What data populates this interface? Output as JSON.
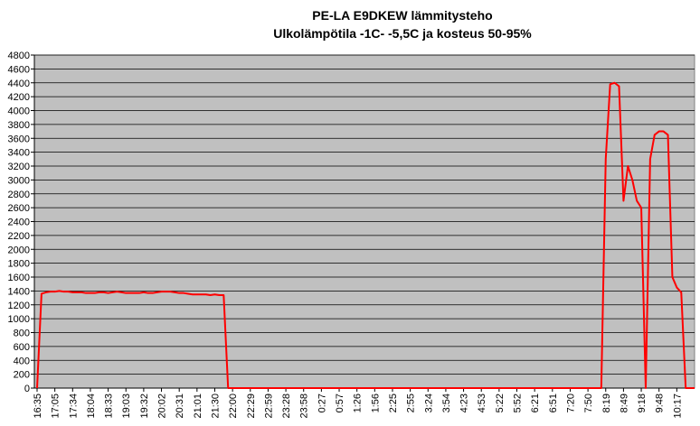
{
  "chart_data": {
    "type": "line",
    "title": "PE-LA E9DKEW lämmitysteho",
    "subtitle": "Ulkolämpötila -1C- -5,5C ja kosteus 50-95%",
    "categories": [
      "16:35",
      null,
      null,
      null,
      "17:05",
      null,
      null,
      null,
      "17:34",
      null,
      null,
      null,
      "18:04",
      null,
      null,
      null,
      "18:33",
      null,
      null,
      null,
      "19:03",
      null,
      null,
      null,
      "19:32",
      null,
      null,
      null,
      "20:02",
      null,
      null,
      null,
      "20:31",
      null,
      null,
      null,
      "21:01",
      null,
      null,
      null,
      "21:30",
      null,
      null,
      null,
      "22:00",
      null,
      null,
      null,
      "22:29",
      null,
      null,
      null,
      "22:59",
      null,
      null,
      null,
      "23:28",
      null,
      null,
      null,
      "23:58",
      null,
      null,
      null,
      "0:27",
      null,
      null,
      null,
      "0:57",
      null,
      null,
      null,
      "1:26",
      null,
      null,
      null,
      "1:56",
      null,
      null,
      null,
      "2:25",
      null,
      null,
      null,
      "2:55",
      null,
      null,
      null,
      "3:24",
      null,
      null,
      null,
      "3:54",
      null,
      null,
      null,
      "4:23",
      null,
      null,
      null,
      "4:53",
      null,
      null,
      null,
      "5:22",
      null,
      null,
      null,
      "5:52",
      null,
      null,
      null,
      "6:21",
      null,
      null,
      null,
      "6:51",
      null,
      null,
      null,
      "7:20",
      null,
      null,
      null,
      "7:50",
      null,
      null,
      null,
      "8:19",
      null,
      null,
      null,
      "8:49",
      null,
      null,
      null,
      "9:18",
      null,
      null,
      null,
      "9:48",
      null,
      null,
      null,
      "10:17",
      null,
      null,
      null,
      null
    ],
    "series": [
      {
        "color": "#ff0000",
        "values": [
          0,
          1360,
          1380,
          1390,
          1390,
          1400,
          1390,
          1390,
          1380,
          1380,
          1380,
          1370,
          1370,
          1370,
          1380,
          1380,
          1370,
          1380,
          1390,
          1380,
          1370,
          1370,
          1370,
          1370,
          1380,
          1370,
          1370,
          1380,
          1390,
          1390,
          1390,
          1380,
          1370,
          1370,
          1360,
          1350,
          1350,
          1350,
          1350,
          1340,
          1350,
          1340,
          1340,
          0,
          0,
          0,
          0,
          0,
          0,
          0,
          0,
          0,
          0,
          0,
          0,
          0,
          0,
          0,
          0,
          0,
          0,
          0,
          0,
          0,
          0,
          0,
          0,
          0,
          0,
          0,
          0,
          0,
          0,
          0,
          0,
          0,
          0,
          0,
          0,
          0,
          0,
          0,
          0,
          0,
          0,
          0,
          0,
          0,
          0,
          0,
          0,
          0,
          0,
          0,
          0,
          0,
          0,
          0,
          0,
          0,
          0,
          0,
          0,
          0,
          0,
          0,
          0,
          0,
          0,
          0,
          0,
          0,
          0,
          0,
          0,
          0,
          0,
          0,
          0,
          0,
          0,
          0,
          0,
          0,
          0,
          0,
          0,
          0,
          3300,
          4380,
          4400,
          4350,
          2700,
          3200,
          3000,
          2700,
          2600,
          0,
          3300,
          3650,
          3700,
          3700,
          3650,
          1600,
          1450,
          1380,
          0,
          0,
          0
        ]
      }
    ],
    "ylim": [
      0,
      4800
    ],
    "yticks": [
      0,
      200,
      400,
      600,
      800,
      1000,
      1200,
      1400,
      1600,
      1800,
      2000,
      2200,
      2400,
      2600,
      2800,
      3000,
      3200,
      3400,
      3600,
      3800,
      4000,
      4200,
      4400,
      4600,
      4800
    ],
    "grid": true,
    "background": "#c0c0c0"
  }
}
